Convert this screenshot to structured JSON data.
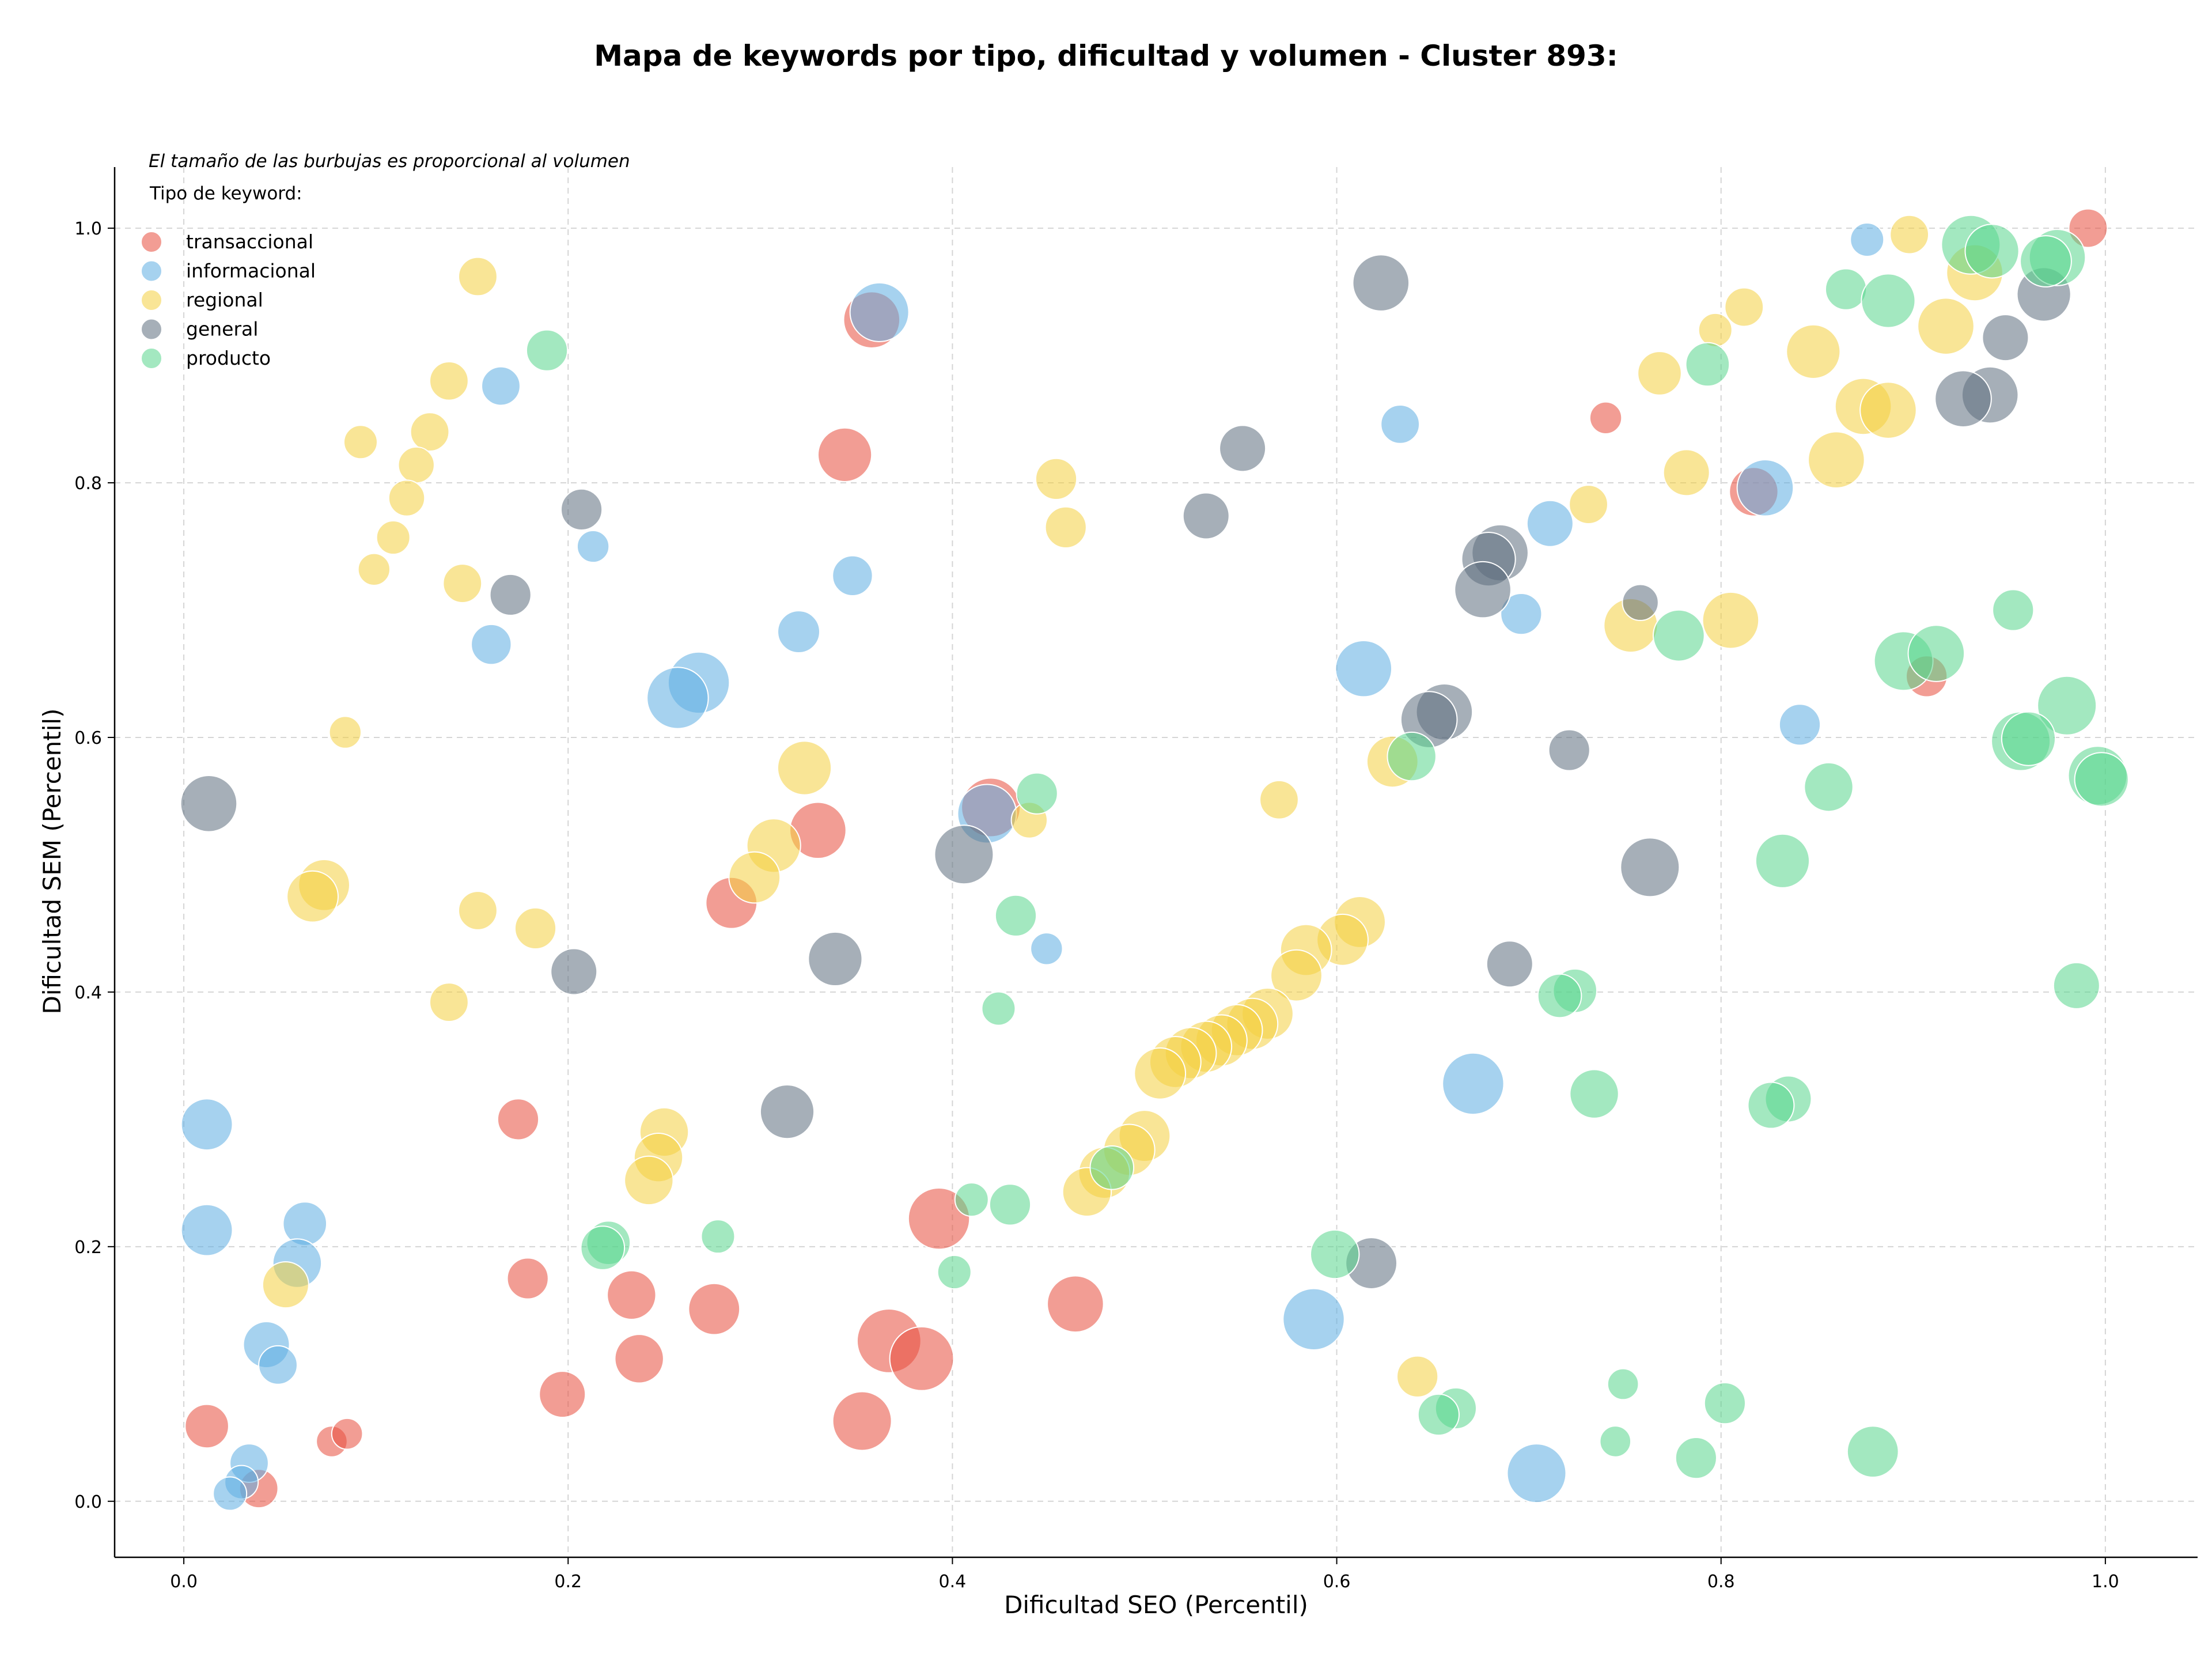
{
  "chart_data": {
    "type": "scatter",
    "title": "Mapa de keywords por tipo, dificultad y volumen - Cluster 893:",
    "xlabel": "Dificultad SEO (Percentil)",
    "ylabel": "Dificultad SEM (Percentil)",
    "xlim": [
      -0.036,
      1.048
    ],
    "ylim": [
      -0.044,
      1.048
    ],
    "xticks": [
      "0.0",
      "0.2",
      "0.4",
      "0.6",
      "0.8",
      "1.0"
    ],
    "yticks": [
      "0.0",
      "0.2",
      "0.4",
      "0.6",
      "0.8",
      "1.0"
    ],
    "grid": true,
    "legend_placement": "top-left",
    "legend_note": "El tamaño de las burbujas es proporcional al volumen",
    "legend_title": "Tipo de keyword:",
    "series": [
      {
        "name": "transaccional",
        "color": "#e74c3c",
        "points": [
          {
            "x": 0.991,
            "y": 1.0,
            "s": 0.35
          },
          {
            "x": 0.74,
            "y": 0.851,
            "s": 0.22
          },
          {
            "x": 0.817,
            "y": 0.793,
            "s": 0.55
          },
          {
            "x": 0.344,
            "y": 0.822,
            "s": 0.65
          },
          {
            "x": 0.358,
            "y": 0.928,
            "s": 0.7
          },
          {
            "x": 0.907,
            "y": 0.648,
            "s": 0.4
          },
          {
            "x": 0.42,
            "y": 0.545,
            "s": 0.75
          },
          {
            "x": 0.33,
            "y": 0.527,
            "s": 0.7
          },
          {
            "x": 0.285,
            "y": 0.47,
            "s": 0.6
          },
          {
            "x": 0.174,
            "y": 0.3,
            "s": 0.4
          },
          {
            "x": 0.179,
            "y": 0.175,
            "s": 0.4
          },
          {
            "x": 0.393,
            "y": 0.222,
            "s": 0.8
          },
          {
            "x": 0.233,
            "y": 0.162,
            "s": 0.55
          },
          {
            "x": 0.276,
            "y": 0.151,
            "s": 0.6
          },
          {
            "x": 0.464,
            "y": 0.155,
            "s": 0.7
          },
          {
            "x": 0.367,
            "y": 0.126,
            "s": 0.85
          },
          {
            "x": 0.384,
            "y": 0.112,
            "s": 0.85
          },
          {
            "x": 0.237,
            "y": 0.112,
            "s": 0.55
          },
          {
            "x": 0.197,
            "y": 0.084,
            "s": 0.5
          },
          {
            "x": 0.353,
            "y": 0.063,
            "s": 0.75
          },
          {
            "x": 0.012,
            "y": 0.059,
            "s": 0.45
          },
          {
            "x": 0.077,
            "y": 0.047,
            "s": 0.2
          },
          {
            "x": 0.085,
            "y": 0.053,
            "s": 0.2
          },
          {
            "x": 0.039,
            "y": 0.01,
            "s": 0.35
          }
        ]
      },
      {
        "name": "informacional",
        "color": "#5dade2",
        "points": [
          {
            "x": 0.876,
            "y": 0.991,
            "s": 0.25
          },
          {
            "x": 0.362,
            "y": 0.934,
            "s": 0.75
          },
          {
            "x": 0.165,
            "y": 0.876,
            "s": 0.35
          },
          {
            "x": 0.633,
            "y": 0.846,
            "s": 0.35
          },
          {
            "x": 0.823,
            "y": 0.796,
            "s": 0.7
          },
          {
            "x": 0.711,
            "y": 0.768,
            "s": 0.5
          },
          {
            "x": 0.213,
            "y": 0.75,
            "s": 0.22
          },
          {
            "x": 0.348,
            "y": 0.727,
            "s": 0.38
          },
          {
            "x": 0.696,
            "y": 0.697,
            "s": 0.4
          },
          {
            "x": 0.32,
            "y": 0.683,
            "s": 0.42
          },
          {
            "x": 0.16,
            "y": 0.673,
            "s": 0.38
          },
          {
            "x": 0.614,
            "y": 0.654,
            "s": 0.7
          },
          {
            "x": 0.268,
            "y": 0.643,
            "s": 0.8
          },
          {
            "x": 0.257,
            "y": 0.631,
            "s": 0.8
          },
          {
            "x": 0.841,
            "y": 0.61,
            "s": 0.4
          },
          {
            "x": 0.418,
            "y": 0.54,
            "s": 0.75
          },
          {
            "x": 0.449,
            "y": 0.434,
            "s": 0.22
          },
          {
            "x": 0.671,
            "y": 0.328,
            "s": 0.8
          },
          {
            "x": 0.012,
            "y": 0.296,
            "s": 0.6
          },
          {
            "x": 0.012,
            "y": 0.213,
            "s": 0.6
          },
          {
            "x": 0.063,
            "y": 0.218,
            "s": 0.45
          },
          {
            "x": 0.059,
            "y": 0.187,
            "s": 0.55
          },
          {
            "x": 0.588,
            "y": 0.143,
            "s": 0.8
          },
          {
            "x": 0.043,
            "y": 0.123,
            "s": 0.5
          },
          {
            "x": 0.049,
            "y": 0.107,
            "s": 0.35
          },
          {
            "x": 0.704,
            "y": 0.022,
            "s": 0.75
          },
          {
            "x": 0.034,
            "y": 0.03,
            "s": 0.35
          },
          {
            "x": 0.03,
            "y": 0.015,
            "s": 0.25
          },
          {
            "x": 0.024,
            "y": 0.006,
            "s": 0.25
          }
        ]
      },
      {
        "name": "regional",
        "color": "#f4d03f",
        "points": [
          {
            "x": 0.898,
            "y": 0.995,
            "s": 0.35
          },
          {
            "x": 0.153,
            "y": 0.962,
            "s": 0.35
          },
          {
            "x": 0.932,
            "y": 0.965,
            "s": 0.7
          },
          {
            "x": 0.812,
            "y": 0.938,
            "s": 0.35
          },
          {
            "x": 0.917,
            "y": 0.923,
            "s": 0.7
          },
          {
            "x": 0.797,
            "y": 0.92,
            "s": 0.25
          },
          {
            "x": 0.848,
            "y": 0.903,
            "s": 0.65
          },
          {
            "x": 0.768,
            "y": 0.886,
            "s": 0.45
          },
          {
            "x": 0.138,
            "y": 0.88,
            "s": 0.35
          },
          {
            "x": 0.874,
            "y": 0.86,
            "s": 0.7
          },
          {
            "x": 0.887,
            "y": 0.857,
            "s": 0.7
          },
          {
            "x": 0.128,
            "y": 0.84,
            "s": 0.35
          },
          {
            "x": 0.092,
            "y": 0.832,
            "s": 0.25
          },
          {
            "x": 0.86,
            "y": 0.818,
            "s": 0.7
          },
          {
            "x": 0.121,
            "y": 0.814,
            "s": 0.3
          },
          {
            "x": 0.782,
            "y": 0.808,
            "s": 0.5
          },
          {
            "x": 0.454,
            "y": 0.803,
            "s": 0.4
          },
          {
            "x": 0.116,
            "y": 0.788,
            "s": 0.3
          },
          {
            "x": 0.731,
            "y": 0.783,
            "s": 0.35
          },
          {
            "x": 0.459,
            "y": 0.765,
            "s": 0.4
          },
          {
            "x": 0.109,
            "y": 0.757,
            "s": 0.25
          },
          {
            "x": 0.099,
            "y": 0.732,
            "s": 0.22
          },
          {
            "x": 0.145,
            "y": 0.721,
            "s": 0.35
          },
          {
            "x": 0.805,
            "y": 0.692,
            "s": 0.7
          },
          {
            "x": 0.753,
            "y": 0.688,
            "s": 0.65
          },
          {
            "x": 0.084,
            "y": 0.604,
            "s": 0.22
          },
          {
            "x": 0.629,
            "y": 0.581,
            "s": 0.6
          },
          {
            "x": 0.323,
            "y": 0.576,
            "s": 0.65
          },
          {
            "x": 0.57,
            "y": 0.551,
            "s": 0.35
          },
          {
            "x": 0.44,
            "y": 0.535,
            "s": 0.3
          },
          {
            "x": 0.307,
            "y": 0.515,
            "s": 0.65
          },
          {
            "x": 0.297,
            "y": 0.49,
            "s": 0.6
          },
          {
            "x": 0.073,
            "y": 0.484,
            "s": 0.6
          },
          {
            "x": 0.067,
            "y": 0.475,
            "s": 0.6
          },
          {
            "x": 0.153,
            "y": 0.464,
            "s": 0.35
          },
          {
            "x": 0.612,
            "y": 0.455,
            "s": 0.6
          },
          {
            "x": 0.603,
            "y": 0.441,
            "s": 0.6
          },
          {
            "x": 0.584,
            "y": 0.433,
            "s": 0.6
          },
          {
            "x": 0.183,
            "y": 0.45,
            "s": 0.4
          },
          {
            "x": 0.579,
            "y": 0.413,
            "s": 0.6
          },
          {
            "x": 0.138,
            "y": 0.392,
            "s": 0.35
          },
          {
            "x": 0.564,
            "y": 0.383,
            "s": 0.6
          },
          {
            "x": 0.556,
            "y": 0.375,
            "s": 0.6
          },
          {
            "x": 0.548,
            "y": 0.37,
            "s": 0.6
          },
          {
            "x": 0.54,
            "y": 0.362,
            "s": 0.6
          },
          {
            "x": 0.532,
            "y": 0.357,
            "s": 0.6
          },
          {
            "x": 0.524,
            "y": 0.352,
            "s": 0.6
          },
          {
            "x": 0.516,
            "y": 0.345,
            "s": 0.6
          },
          {
            "x": 0.508,
            "y": 0.336,
            "s": 0.6
          },
          {
            "x": 0.25,
            "y": 0.29,
            "s": 0.55
          },
          {
            "x": 0.5,
            "y": 0.287,
            "s": 0.6
          },
          {
            "x": 0.492,
            "y": 0.276,
            "s": 0.6
          },
          {
            "x": 0.247,
            "y": 0.27,
            "s": 0.55
          },
          {
            "x": 0.479,
            "y": 0.258,
            "s": 0.6
          },
          {
            "x": 0.47,
            "y": 0.243,
            "s": 0.55
          },
          {
            "x": 0.242,
            "y": 0.252,
            "s": 0.55
          },
          {
            "x": 0.053,
            "y": 0.17,
            "s": 0.5
          },
          {
            "x": 0.642,
            "y": 0.098,
            "s": 0.4
          }
        ]
      },
      {
        "name": "general",
        "color": "#5d6d7e",
        "points": [
          {
            "x": 0.623,
            "y": 0.957,
            "s": 0.7
          },
          {
            "x": 0.968,
            "y": 0.948,
            "s": 0.65
          },
          {
            "x": 0.948,
            "y": 0.914,
            "s": 0.5
          },
          {
            "x": 0.94,
            "y": 0.869,
            "s": 0.7
          },
          {
            "x": 0.926,
            "y": 0.866,
            "s": 0.7
          },
          {
            "x": 0.551,
            "y": 0.827,
            "s": 0.5
          },
          {
            "x": 0.207,
            "y": 0.779,
            "s": 0.4
          },
          {
            "x": 0.532,
            "y": 0.774,
            "s": 0.5
          },
          {
            "x": 0.685,
            "y": 0.745,
            "s": 0.7
          },
          {
            "x": 0.679,
            "y": 0.74,
            "s": 0.65
          },
          {
            "x": 0.676,
            "y": 0.716,
            "s": 0.7
          },
          {
            "x": 0.17,
            "y": 0.712,
            "s": 0.4
          },
          {
            "x": 0.758,
            "y": 0.706,
            "s": 0.3
          },
          {
            "x": 0.656,
            "y": 0.62,
            "s": 0.7
          },
          {
            "x": 0.648,
            "y": 0.614,
            "s": 0.7
          },
          {
            "x": 0.721,
            "y": 0.59,
            "s": 0.4
          },
          {
            "x": 0.013,
            "y": 0.548,
            "s": 0.7
          },
          {
            "x": 0.406,
            "y": 0.508,
            "s": 0.75
          },
          {
            "x": 0.763,
            "y": 0.498,
            "s": 0.75
          },
          {
            "x": 0.339,
            "y": 0.426,
            "s": 0.65
          },
          {
            "x": 0.69,
            "y": 0.422,
            "s": 0.5
          },
          {
            "x": 0.203,
            "y": 0.416,
            "s": 0.5
          },
          {
            "x": 0.314,
            "y": 0.306,
            "s": 0.65
          },
          {
            "x": 0.618,
            "y": 0.187,
            "s": 0.6
          }
        ]
      },
      {
        "name": "producto",
        "color": "#58d68d",
        "points": [
          {
            "x": 0.93,
            "y": 0.987,
            "s": 0.75
          },
          {
            "x": 0.941,
            "y": 0.982,
            "s": 0.65
          },
          {
            "x": 0.975,
            "y": 0.977,
            "s": 0.7
          },
          {
            "x": 0.969,
            "y": 0.974,
            "s": 0.6
          },
          {
            "x": 0.865,
            "y": 0.952,
            "s": 0.4
          },
          {
            "x": 0.887,
            "y": 0.943,
            "s": 0.65
          },
          {
            "x": 0.189,
            "y": 0.904,
            "s": 0.4
          },
          {
            "x": 0.793,
            "y": 0.893,
            "s": 0.45
          },
          {
            "x": 0.952,
            "y": 0.7,
            "s": 0.4
          },
          {
            "x": 0.778,
            "y": 0.68,
            "s": 0.6
          },
          {
            "x": 0.895,
            "y": 0.66,
            "s": 0.75
          },
          {
            "x": 0.912,
            "y": 0.666,
            "s": 0.7
          },
          {
            "x": 0.98,
            "y": 0.625,
            "s": 0.75
          },
          {
            "x": 0.956,
            "y": 0.597,
            "s": 0.75
          },
          {
            "x": 0.96,
            "y": 0.599,
            "s": 0.65
          },
          {
            "x": 0.996,
            "y": 0.57,
            "s": 0.75
          },
          {
            "x": 0.998,
            "y": 0.567,
            "s": 0.65
          },
          {
            "x": 0.639,
            "y": 0.585,
            "s": 0.55
          },
          {
            "x": 0.856,
            "y": 0.561,
            "s": 0.55
          },
          {
            "x": 0.444,
            "y": 0.556,
            "s": 0.4
          },
          {
            "x": 0.832,
            "y": 0.503,
            "s": 0.65
          },
          {
            "x": 0.433,
            "y": 0.46,
            "s": 0.4
          },
          {
            "x": 0.985,
            "y": 0.405,
            "s": 0.5
          },
          {
            "x": 0.724,
            "y": 0.401,
            "s": 0.45
          },
          {
            "x": 0.716,
            "y": 0.397,
            "s": 0.45
          },
          {
            "x": 0.424,
            "y": 0.387,
            "s": 0.25
          },
          {
            "x": 0.734,
            "y": 0.32,
            "s": 0.55
          },
          {
            "x": 0.835,
            "y": 0.316,
            "s": 0.5
          },
          {
            "x": 0.826,
            "y": 0.311,
            "s": 0.5
          },
          {
            "x": 0.41,
            "y": 0.237,
            "s": 0.25
          },
          {
            "x": 0.43,
            "y": 0.233,
            "s": 0.4
          },
          {
            "x": 0.483,
            "y": 0.262,
            "s": 0.45
          },
          {
            "x": 0.278,
            "y": 0.208,
            "s": 0.25
          },
          {
            "x": 0.221,
            "y": 0.203,
            "s": 0.45
          },
          {
            "x": 0.218,
            "y": 0.199,
            "s": 0.45
          },
          {
            "x": 0.599,
            "y": 0.194,
            "s": 0.55
          },
          {
            "x": 0.401,
            "y": 0.18,
            "s": 0.25
          },
          {
            "x": 0.749,
            "y": 0.092,
            "s": 0.2
          },
          {
            "x": 0.802,
            "y": 0.077,
            "s": 0.4
          },
          {
            "x": 0.662,
            "y": 0.073,
            "s": 0.4
          },
          {
            "x": 0.653,
            "y": 0.068,
            "s": 0.4
          },
          {
            "x": 0.745,
            "y": 0.047,
            "s": 0.2
          },
          {
            "x": 0.879,
            "y": 0.039,
            "s": 0.6
          },
          {
            "x": 0.787,
            "y": 0.034,
            "s": 0.4
          }
        ]
      }
    ]
  }
}
